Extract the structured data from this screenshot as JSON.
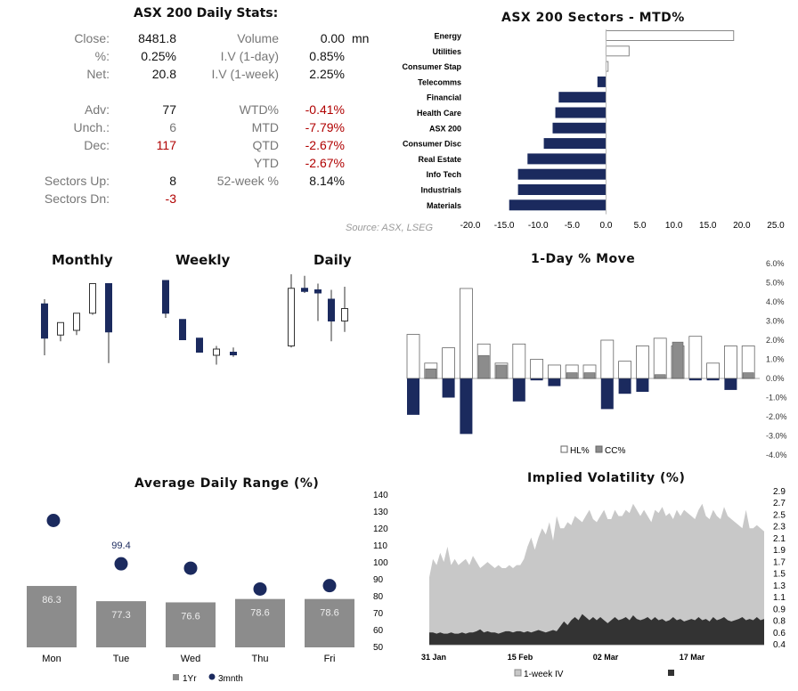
{
  "stats": {
    "title": "ASX 200 Daily Stats:",
    "left": [
      {
        "label": "Close:",
        "value": "8481.8"
      },
      {
        "label": "%:",
        "value": "0.25%"
      },
      {
        "label": "Net:",
        "value": "20.8"
      },
      {
        "label": "Adv:",
        "value": "77"
      },
      {
        "label": "Unch.:",
        "value": "6"
      },
      {
        "label": "Dec:",
        "value": "117"
      },
      {
        "label": "Sectors Up:",
        "value": "8"
      },
      {
        "label": "Sectors Dn:",
        "value": "-3"
      }
    ],
    "right": [
      {
        "label": "Volume",
        "value": "0.00",
        "unit": "mn"
      },
      {
        "label": "I.V (1-day)",
        "value": "0.85%"
      },
      {
        "label": "I.V (1-week)",
        "value": "2.25%"
      },
      {
        "label": "WTD%",
        "value": "-0.41%"
      },
      {
        "label": "MTD",
        "value": "-7.79%"
      },
      {
        "label": "QTD",
        "value": "-2.67%"
      },
      {
        "label": "YTD",
        "value": "-2.67%"
      },
      {
        "label": "52-week %",
        "value": "8.14%"
      }
    ],
    "colors": {
      "negative": "#b00000",
      "unchanged": "#777777"
    }
  },
  "colors": {
    "navy": "#1b2a5e",
    "grey": "#8c8c8c",
    "lightgrey": "#c8c8c8",
    "darkgrey": "#333333"
  },
  "chart_data": [
    {
      "id": "sectors",
      "type": "bar",
      "orientation": "horizontal",
      "title": "ASX 200 Sectors - MTD%",
      "source": "Source: ASX, LSEG",
      "categories": [
        "Energy",
        "Utilities",
        "Consumer Stap",
        "Telecomms",
        "Financial",
        "Health Care",
        "ASX 200",
        "Consumer Disc",
        "Real Estate",
        "Info Tech",
        "Industrials",
        "Materials"
      ],
      "values": [
        18.8,
        3.4,
        0.3,
        -1.2,
        -6.9,
        -7.4,
        -7.8,
        -9.1,
        -11.5,
        -12.9,
        -12.9,
        -14.2
      ],
      "xlim": [
        -20,
        25
      ],
      "xticks": [
        "-20.0",
        "-15.0",
        "-10.0",
        "-5.0",
        "0.0",
        "5.0",
        "10.0",
        "15.0",
        "20.0",
        "25.0"
      ]
    },
    {
      "id": "candles",
      "type": "candlestick",
      "panels": [
        {
          "title": "Monthly",
          "bars": [
            {
              "o": 0.55,
              "h": 0.52,
              "l": 0.88,
              "c": 0.77
            },
            {
              "o": 0.75,
              "h": 0.67,
              "l": 0.79,
              "c": 0.67
            },
            {
              "o": 0.72,
              "h": 0.61,
              "l": 0.75,
              "c": 0.61
            },
            {
              "o": 0.61,
              "h": 0.42,
              "l": 0.62,
              "c": 0.42
            },
            {
              "o": 0.42,
              "h": 0.42,
              "l": 0.93,
              "c": 0.73
            }
          ]
        },
        {
          "title": "Weekly",
          "bars": [
            {
              "o": 0.4,
              "h": 0.4,
              "l": 0.64,
              "c": 0.61
            },
            {
              "o": 0.65,
              "h": 0.65,
              "l": 0.78,
              "c": 0.78
            },
            {
              "o": 0.77,
              "h": 0.77,
              "l": 0.86,
              "c": 0.86
            },
            {
              "o": 0.88,
              "h": 0.82,
              "l": 0.94,
              "c": 0.84
            },
            {
              "o": 0.86,
              "h": 0.83,
              "l": 0.89,
              "c": 0.87
            }
          ]
        },
        {
          "title": "Daily",
          "bars": [
            {
              "o": 0.82,
              "h": 0.36,
              "l": 0.83,
              "c": 0.45
            },
            {
              "o": 0.45,
              "h": 0.37,
              "l": 0.48,
              "c": 0.47
            },
            {
              "o": 0.46,
              "h": 0.42,
              "l": 0.66,
              "c": 0.48
            },
            {
              "o": 0.52,
              "h": 0.46,
              "l": 0.79,
              "c": 0.66
            },
            {
              "o": 0.66,
              "h": 0.44,
              "l": 0.73,
              "c": 0.58
            }
          ]
        }
      ]
    },
    {
      "id": "move",
      "type": "bar",
      "title": "1-Day % Move",
      "ylim": [
        -4,
        6
      ],
      "yticks": [
        "6.0%",
        "5.0%",
        "4.0%",
        "3.0%",
        "2.0%",
        "1.0%",
        "0.0%",
        "-1.0%",
        "-2.0%",
        "-3.0%",
        "-4.0%"
      ],
      "series": [
        {
          "name": "HL%",
          "values": [
            2.3,
            0.8,
            1.6,
            4.7,
            1.8,
            0.8,
            1.8,
            1.0,
            0.7,
            0.7,
            0.7,
            2.0,
            0.9,
            1.7,
            2.1,
            1.7,
            2.2,
            0.8,
            1.7,
            1.7
          ]
        },
        {
          "name": "CC%",
          "values": [
            -1.9,
            0.5,
            -1.0,
            -2.9,
            1.2,
            0.7,
            -1.2,
            -0.1,
            -0.4,
            0.3,
            0.3,
            -1.6,
            -0.8,
            -0.7,
            0.2,
            1.9,
            -0.1,
            -0.1,
            -0.6,
            0.3
          ]
        }
      ],
      "legend": "bottom"
    },
    {
      "id": "adr",
      "type": "bar",
      "title": "Average Daily Range (%)",
      "categories": [
        "Mon",
        "Tue",
        "Wed",
        "Thu",
        "Fri"
      ],
      "ylim": [
        50,
        140
      ],
      "yticks": [
        "140",
        "130",
        "120",
        "110",
        "100",
        "90",
        "80",
        "70",
        "60",
        "50"
      ],
      "series": [
        {
          "name": "1Yr",
          "values": [
            86.3,
            77.3,
            76.6,
            78.6,
            78.6
          ],
          "labels": [
            "86.3",
            "77.3",
            "76.6",
            "78.6",
            "78.6"
          ]
        },
        {
          "name": "3mnth",
          "values": [
            125,
            99.4,
            96.8,
            84.5,
            86.5
          ],
          "labels": [
            "",
            "99.4",
            "",
            "",
            ""
          ]
        }
      ],
      "legend": "bottom"
    },
    {
      "id": "iv",
      "type": "area",
      "title": "Implied Volatility (%)",
      "ylim": [
        0.4,
        2.9
      ],
      "yticks": [
        "2.9",
        "2.7",
        "2.5",
        "2.3",
        "2.1",
        "1.9",
        "1.7",
        "1.5",
        "1.3",
        "1.1",
        "0.9",
        "0.8",
        "0.6",
        "0.4"
      ],
      "xticks": [
        "31 Jan",
        "15 Feb",
        "02 Mar",
        "17 Mar"
      ],
      "series": [
        {
          "name": "1-week IV",
          "values": [
            1.5,
            1.8,
            1.7,
            1.9,
            1.75,
            2.0,
            1.7,
            1.8,
            1.7,
            1.75,
            1.8,
            1.7,
            1.85,
            1.75,
            1.65,
            1.7,
            1.75,
            1.7,
            1.65,
            1.7,
            1.65,
            1.65,
            1.7,
            1.65,
            1.7,
            1.7,
            1.8,
            2.0,
            2.15,
            1.95,
            2.15,
            2.3,
            2.2,
            2.4,
            2.1,
            2.5,
            2.3,
            2.3,
            2.4,
            2.35,
            2.5,
            2.45,
            2.4,
            2.5,
            2.6,
            2.45,
            2.4,
            2.5,
            2.6,
            2.45,
            2.45,
            2.6,
            2.5,
            2.5,
            2.6,
            2.55,
            2.7,
            2.6,
            2.5,
            2.6,
            2.5,
            2.4,
            2.6,
            2.55,
            2.65,
            2.5,
            2.55,
            2.45,
            2.6,
            2.5,
            2.6,
            2.55,
            2.5,
            2.45,
            2.6,
            2.7,
            2.5,
            2.45,
            2.6,
            2.5,
            2.45,
            2.65,
            2.5,
            2.45,
            2.4,
            2.35,
            2.3,
            2.6,
            2.3,
            2.3,
            2.35,
            2.3,
            2.25
          ]
        },
        {
          "name": "",
          "values": [
            0.6,
            0.6,
            0.58,
            0.6,
            0.58,
            0.58,
            0.6,
            0.58,
            0.58,
            0.6,
            0.58,
            0.6,
            0.6,
            0.62,
            0.65,
            0.6,
            0.62,
            0.6,
            0.6,
            0.58,
            0.6,
            0.62,
            0.62,
            0.6,
            0.62,
            0.62,
            0.6,
            0.62,
            0.6,
            0.62,
            0.64,
            0.62,
            0.6,
            0.62,
            0.64,
            0.62,
            0.7,
            0.78,
            0.72,
            0.8,
            0.85,
            0.8,
            0.9,
            0.85,
            0.8,
            0.85,
            0.8,
            0.85,
            0.8,
            0.75,
            0.8,
            0.85,
            0.8,
            0.82,
            0.85,
            0.8,
            0.88,
            0.82,
            0.8,
            0.82,
            0.85,
            0.8,
            0.85,
            0.8,
            0.82,
            0.78,
            0.8,
            0.85,
            0.8,
            0.82,
            0.78,
            0.8,
            0.82,
            0.8,
            0.85,
            0.8,
            0.82,
            0.78,
            0.85,
            0.8,
            0.82,
            0.85,
            0.8,
            0.78,
            0.8,
            0.82,
            0.85,
            0.8,
            0.82,
            0.8,
            0.85,
            0.8,
            0.82
          ]
        }
      ],
      "legend": "bottom"
    }
  ]
}
